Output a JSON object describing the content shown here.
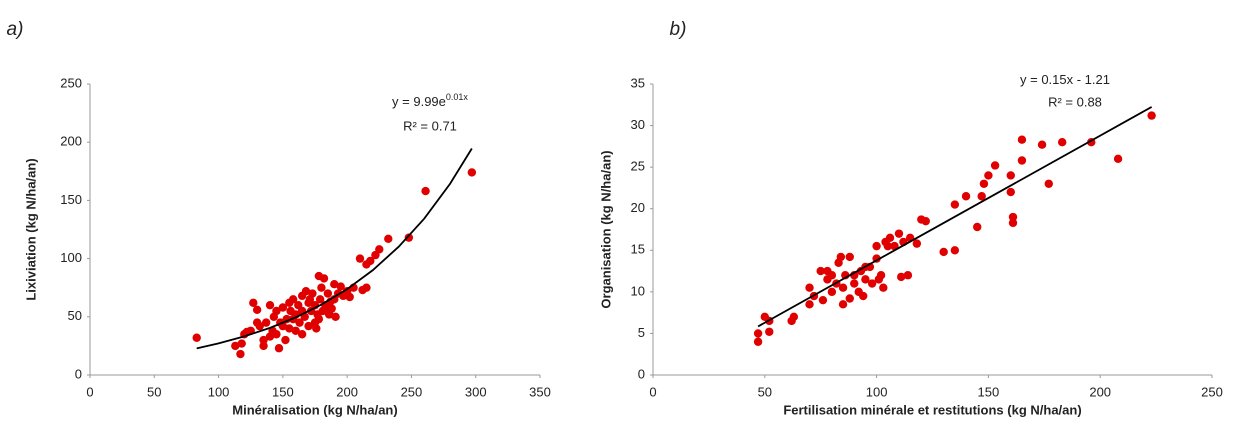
{
  "chart_data": [
    {
      "type": "scatter",
      "panel_label": "a)",
      "x_label": "Minéralisation (kg N/ha/an)",
      "y_label": "Lixiviation (kg N/ha/an)",
      "xlim": [
        0,
        350
      ],
      "xticks": [
        0,
        50,
        100,
        150,
        200,
        250,
        300,
        350
      ],
      "ylim": [
        0,
        250
      ],
      "yticks": [
        0,
        50,
        100,
        150,
        200,
        250
      ],
      "series": [
        {
          "color": "#e00000",
          "x": [
            83,
            113,
            117,
            118,
            120,
            122,
            125,
            127,
            130,
            132,
            135,
            135,
            137,
            140,
            142,
            143,
            145,
            145,
            147,
            148,
            150,
            150,
            152,
            153,
            155,
            156,
            158,
            158,
            160,
            160,
            162,
            163,
            165,
            165,
            167,
            168,
            170,
            170,
            171,
            172,
            173,
            175,
            175,
            176,
            177,
            178,
            179,
            180,
            181,
            182,
            183,
            185,
            186,
            187,
            188,
            190,
            190,
            191,
            193,
            195,
            197,
            200,
            202,
            205,
            210,
            212,
            215,
            215,
            218,
            222,
            225,
            232,
            248,
            261,
            297,
            130,
            140,
            155,
            165,
            185,
            178
          ],
          "y": [
            32,
            25,
            18,
            27,
            35,
            37,
            38,
            62,
            56,
            42,
            30,
            25,
            45,
            60,
            38,
            50,
            55,
            35,
            23,
            45,
            58,
            42,
            30,
            48,
            40,
            55,
            65,
            48,
            38,
            52,
            60,
            45,
            55,
            35,
            50,
            72,
            62,
            42,
            65,
            55,
            70,
            45,
            60,
            40,
            52,
            85,
            65,
            75,
            55,
            83,
            60,
            70,
            52,
            63,
            57,
            78,
            65,
            50,
            70,
            76,
            68,
            72,
            67,
            75,
            100,
            73,
            95,
            75,
            98,
            103,
            108,
            117,
            118,
            158,
            174,
            45,
            33,
            62,
            68,
            55,
            48
          ]
        }
      ],
      "trendline": {
        "color": "#000000",
        "x": [
          83,
          100,
          120,
          140,
          160,
          180,
          200,
          220,
          240,
          260,
          280,
          297
        ],
        "y": [
          22.9,
          27.2,
          33.2,
          40.5,
          49.5,
          60.5,
          73.8,
          90.1,
          110.1,
          134.4,
          164.2,
          194.6
        ]
      },
      "equation": {
        "base": "y = 9.99e",
        "exponent": "0.01x"
      },
      "r_squared": "R² = 0.71"
    },
    {
      "type": "scatter",
      "panel_label": "b)",
      "x_label": "Fertilisation minérale et restitutions (kg N/ha/an)",
      "y_label": "Organisation (kg N/ha/an)",
      "xlim": [
        0,
        250
      ],
      "xticks": [
        0,
        50,
        100,
        150,
        200,
        250
      ],
      "ylim": [
        0,
        35
      ],
      "yticks": [
        0,
        5,
        10,
        15,
        20,
        25,
        30,
        35
      ],
      "series": [
        {
          "color": "#e00000",
          "x": [
            47,
            47,
            50,
            52,
            52,
            62,
            63,
            70,
            70,
            72,
            75,
            76,
            78,
            78,
            80,
            80,
            82,
            83,
            84,
            85,
            85,
            86,
            88,
            88,
            90,
            90,
            92,
            93,
            94,
            95,
            95,
            97,
            98,
            100,
            100,
            101,
            102,
            103,
            104,
            105,
            106,
            108,
            110,
            111,
            112,
            114,
            115,
            118,
            120,
            122,
            130,
            135,
            135,
            140,
            145,
            147,
            148,
            150,
            153,
            160,
            160,
            161,
            161,
            165,
            165,
            174,
            177,
            183,
            196,
            208,
            223
          ],
          "y": [
            4,
            5,
            7,
            6.5,
            5.2,
            6.5,
            7,
            8.5,
            10.5,
            9.5,
            12.5,
            9,
            12.5,
            11.5,
            10,
            12,
            11,
            13.5,
            14.2,
            8.5,
            10.5,
            12,
            9.2,
            14.2,
            12,
            11,
            10,
            12.5,
            9.5,
            11.5,
            13,
            13,
            11,
            15.5,
            14,
            11.5,
            12,
            10.5,
            16,
            15.5,
            16.5,
            15.5,
            17,
            11.8,
            16,
            12,
            16.5,
            15.8,
            18.7,
            18.5,
            14.8,
            20.5,
            15,
            21.5,
            17.8,
            21.5,
            23,
            24,
            25.2,
            24,
            22,
            19,
            18.3,
            28.3,
            25.8,
            27.7,
            23,
            28,
            28,
            26,
            31.2
          ]
        }
      ],
      "trendline": {
        "color": "#000000",
        "x": [
          47,
          223
        ],
        "y": [
          5.84,
          32.24
        ]
      },
      "equation": {
        "base": "y = 0.15x - 1.21"
      },
      "r_squared": "R² = 0.88"
    }
  ]
}
